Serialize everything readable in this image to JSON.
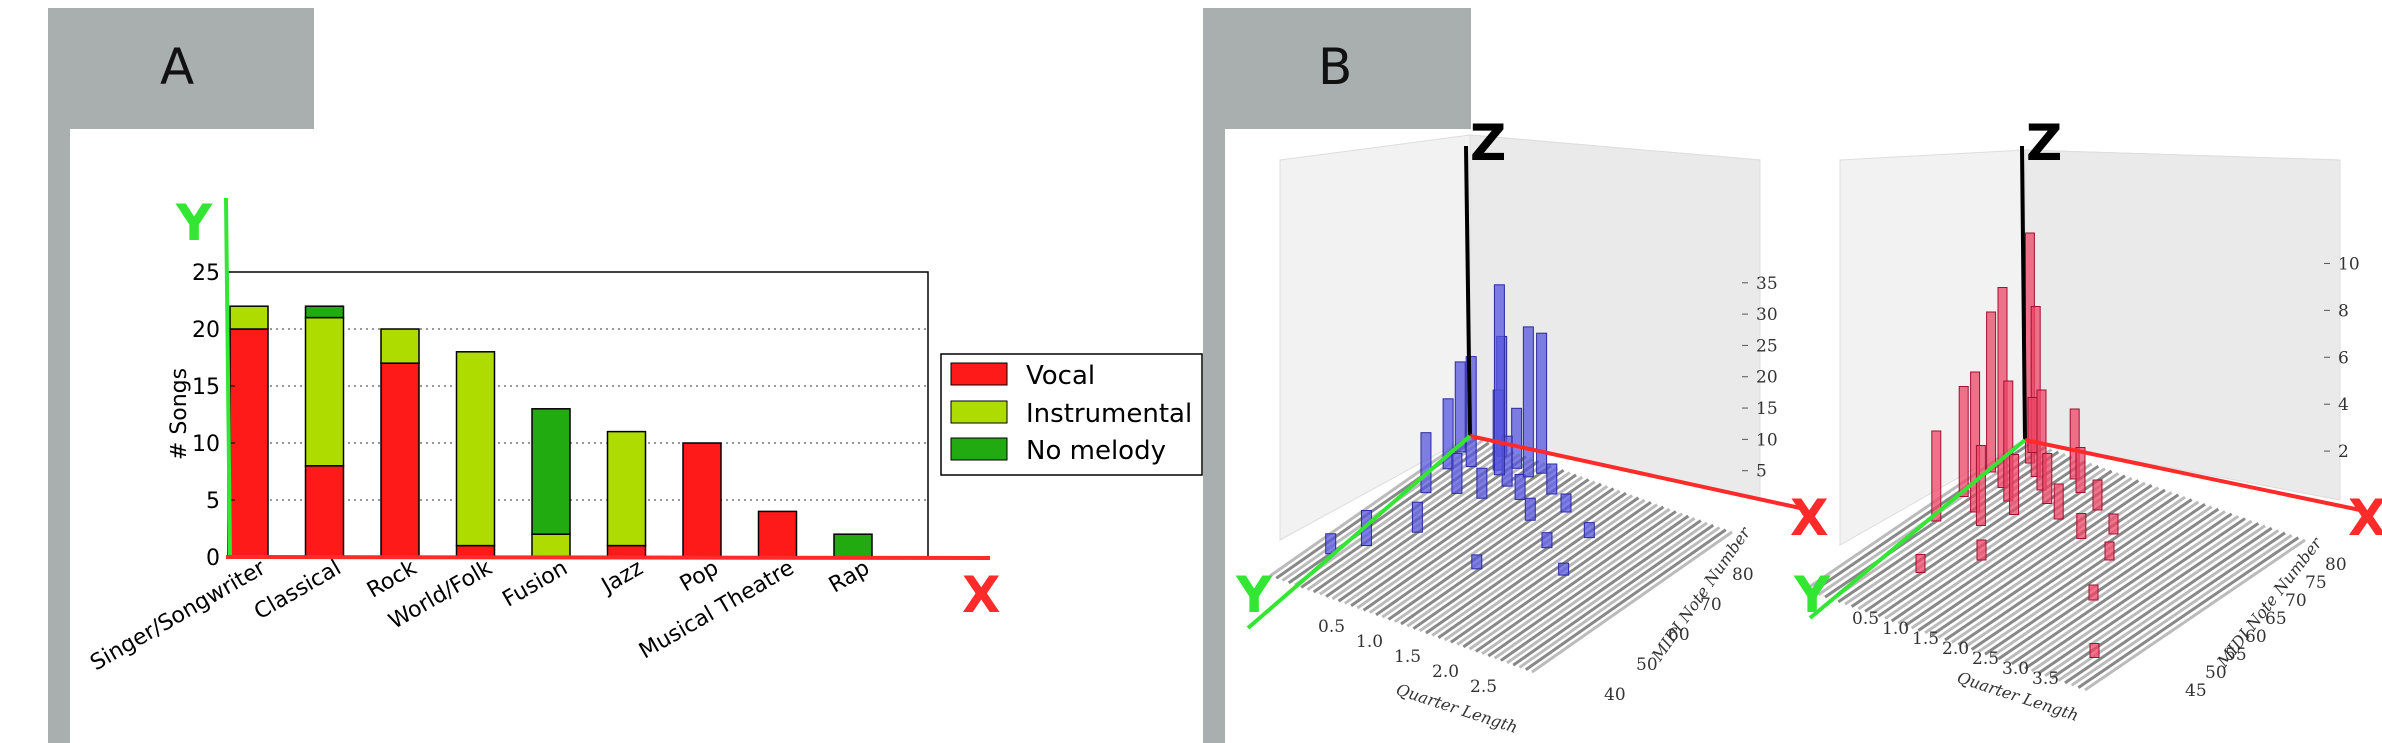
{
  "panel_a": {
    "label": "A"
  },
  "panel_b": {
    "label": "B"
  },
  "colors": {
    "vocal": "#ff1a1a",
    "instrumental": "#aedc00",
    "no_melody": "#22aa11",
    "y_axis": "#33e633",
    "x_axis": "#ff2a2a",
    "z_axis": "#000000",
    "blue_bars": "#5555dd",
    "pink_bars": "#ee4466",
    "tab": "#a9aeae"
  },
  "axis_letters": {
    "x": "X",
    "y": "Y",
    "z": "Z"
  },
  "chart_data": [
    {
      "type": "bar",
      "stacked": true,
      "categories": [
        "Singer/Songwriter",
        "Classical",
        "Rock",
        "World/Folk",
        "Fusion",
        "Jazz",
        "Pop",
        "Musical Theatre",
        "Rap"
      ],
      "series": [
        {
          "name": "Vocal",
          "values": [
            20,
            8,
            17,
            1,
            0,
            1,
            10,
            4,
            0
          ]
        },
        {
          "name": "Instrumental",
          "values": [
            2,
            13,
            3,
            17,
            2,
            10,
            0,
            0,
            0
          ]
        },
        {
          "name": "No melody",
          "values": [
            0,
            1,
            0,
            0,
            11,
            0,
            0,
            0,
            2
          ]
        }
      ],
      "title": "",
      "xlabel": "",
      "ylabel": "# Songs",
      "ylim": [
        0,
        25
      ],
      "yticks": [
        "0",
        "5",
        "10",
        "15",
        "20",
        "25"
      ],
      "grid": "horizontal dotted",
      "legend": "right"
    },
    {
      "type": "3d-bar",
      "color": "blue",
      "xlabel": "Quarter Length",
      "ylabel": "MIDI Note Number",
      "xticks": [
        "0.5",
        "1.0",
        "1.5",
        "2.0",
        "2.5"
      ],
      "yticks": [
        "40",
        "50",
        "60",
        "70",
        "80"
      ],
      "zticks": [
        "5",
        "10",
        "15",
        "20",
        "25",
        "30",
        "35"
      ],
      "zlim": [
        0,
        38
      ]
    },
    {
      "type": "3d-bar",
      "color": "red",
      "xlabel": "Quarter Length",
      "ylabel": "MIDI Note Number",
      "xticks": [
        "0.5",
        "1.0",
        "1.5",
        "2.0",
        "2.5",
        "3.0",
        "3.5"
      ],
      "yticks": [
        "45",
        "50",
        "55",
        "60",
        "65",
        "70",
        "75",
        "80"
      ],
      "zticks": [
        "2",
        "4",
        "6",
        "8",
        "10"
      ],
      "zlim": [
        0,
        11
      ]
    }
  ]
}
